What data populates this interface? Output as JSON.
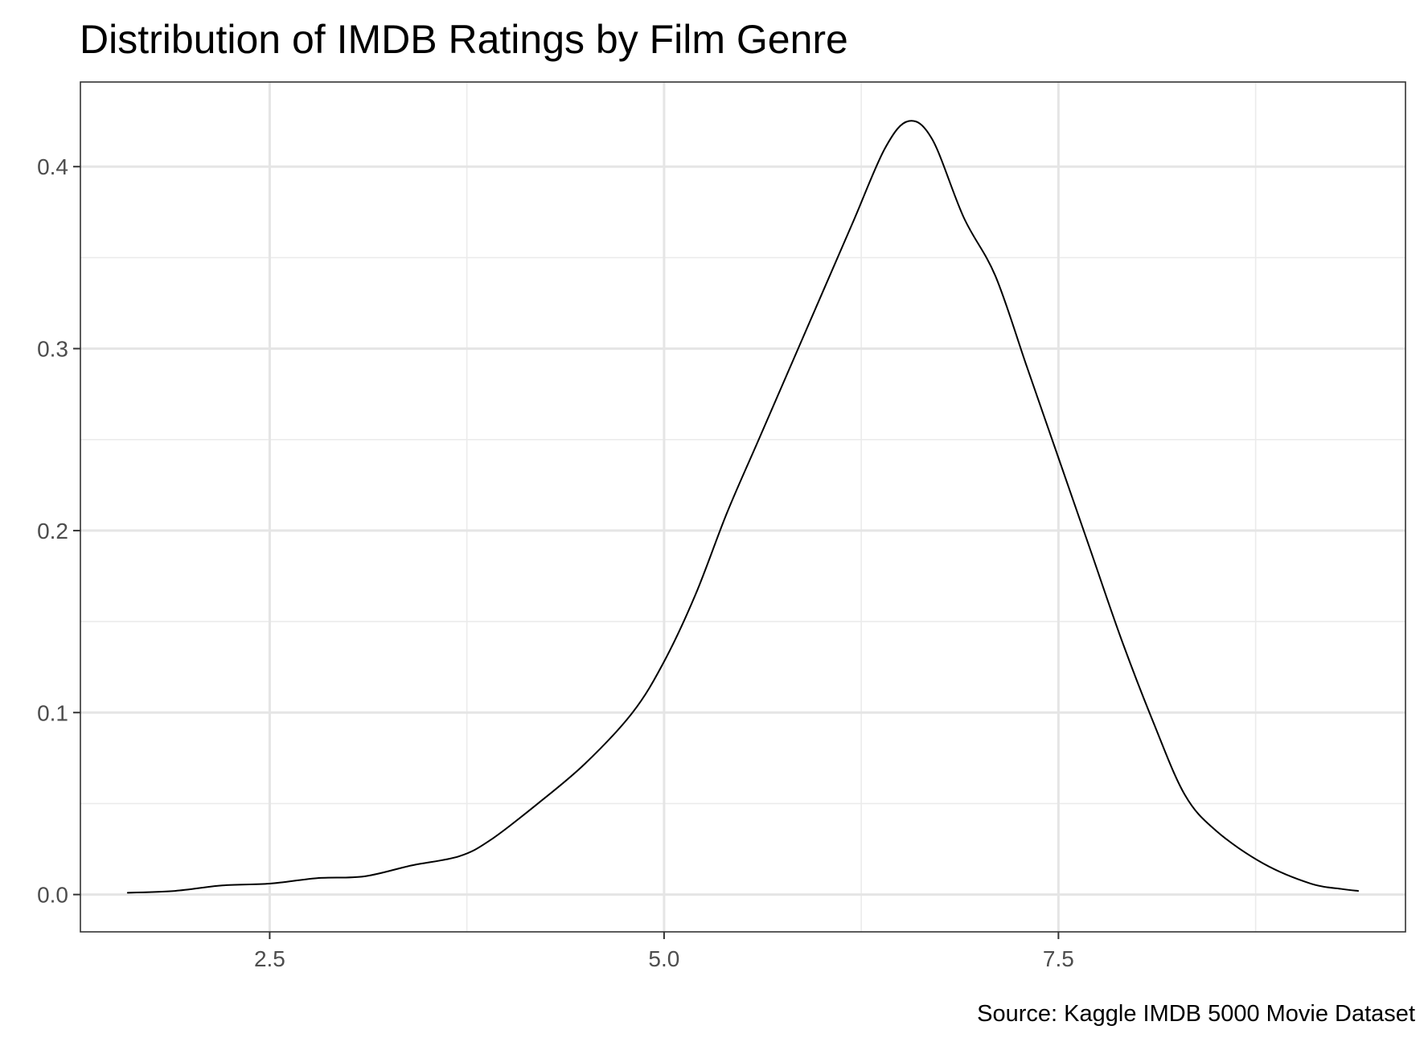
{
  "chart_data": {
    "type": "line",
    "title": "Distribution of IMDB Ratings by Film Genre",
    "caption": "Source: Kaggle IMDB 5000 Movie Dataset",
    "xlabel": "",
    "ylabel": "",
    "xlim": [
      1.3,
      9.7
    ],
    "ylim": [
      -0.0205,
      0.4465
    ],
    "x_ticks": [
      2.5,
      5.0,
      7.5
    ],
    "x_tick_labels": [
      "2.5",
      "5.0",
      "7.5"
    ],
    "y_ticks": [
      0.0,
      0.1,
      0.2,
      0.3,
      0.4
    ],
    "y_tick_labels": [
      "0.0",
      "0.1",
      "0.2",
      "0.3",
      "0.4"
    ],
    "grid": true,
    "legend": "none",
    "line_color": "#000000",
    "series": [
      {
        "x": [
          1.6,
          1.9,
          2.2,
          2.5,
          2.8,
          3.1,
          3.4,
          3.7,
          3.9,
          4.2,
          4.5,
          4.8,
          5.0,
          5.2,
          5.4,
          5.6,
          5.8,
          6.0,
          6.2,
          6.4,
          6.55,
          6.7,
          6.9,
          7.1,
          7.3,
          7.5,
          7.7,
          7.9,
          8.1,
          8.3,
          8.5,
          8.8,
          9.1,
          9.3,
          9.4
        ],
        "y": [
          0.001,
          0.002,
          0.005,
          0.006,
          0.009,
          0.01,
          0.016,
          0.021,
          0.03,
          0.05,
          0.072,
          0.1,
          0.128,
          0.165,
          0.21,
          0.25,
          0.29,
          0.33,
          0.37,
          0.41,
          0.425,
          0.415,
          0.372,
          0.34,
          0.29,
          0.24,
          0.19,
          0.14,
          0.095,
          0.055,
          0.035,
          0.017,
          0.006,
          0.003,
          0.002
        ]
      }
    ]
  }
}
